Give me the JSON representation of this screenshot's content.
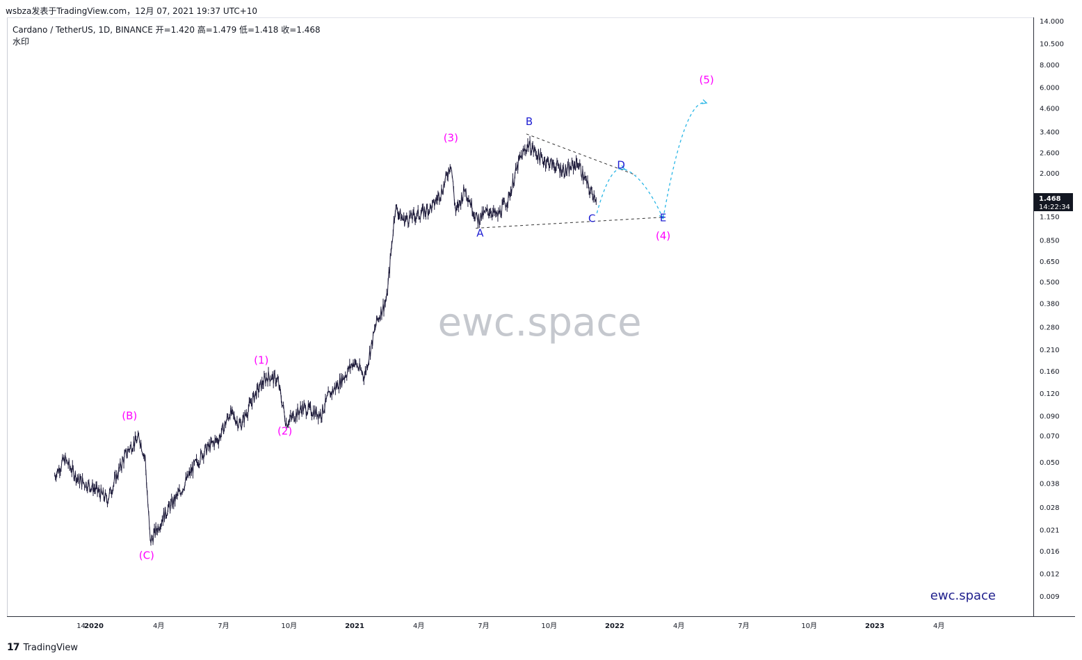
{
  "header": {
    "published_by": "wsbza发表于TradingView.com，12月 07, 2021 19:37 UTC+10"
  },
  "symbol": {
    "line": "Cardano / TetherUS, 1D, BINANCE  开=1.420  高=1.479  低=1.418  收=1.468",
    "watermark_label": "水印"
  },
  "watermark": {
    "center_text": "ewc.space",
    "corner_text": "ewc.space"
  },
  "price_badge": {
    "price": "1.468",
    "countdown": "14:22:34"
  },
  "footer": {
    "logo": "17",
    "brand": "TradingView"
  },
  "colors": {
    "candles": "#1b1838",
    "wave_labels_primary": "#ff00ff",
    "wave_labels_sub": "#1e1ed2",
    "projection": "#29b6e6",
    "triangle_lines": "#333333",
    "price_badge_bg": "#131722"
  },
  "chart_data": {
    "type": "line",
    "title": "Cardano / TetherUS, 1D, BINANCE",
    "yscale": "log",
    "ylim": [
      0.0075,
      15
    ],
    "y_ticks": [
      "14.000",
      "10.500",
      "8.000",
      "6.000",
      "4.600",
      "3.400",
      "2.600",
      "2.000",
      "1.150",
      "0.850",
      "0.650",
      "0.500",
      "0.380",
      "0.280",
      "0.210",
      "0.160",
      "0.120",
      "0.090",
      "0.070",
      "0.050",
      "0.038",
      "0.028",
      "0.021",
      "0.016",
      "0.012",
      "0.009"
    ],
    "x_ticks": [
      "14",
      "2020",
      "4月",
      "7月",
      "10月",
      "2021",
      "4月",
      "7月",
      "10月",
      "2022",
      "4月",
      "7月",
      "10月",
      "2023",
      "4月"
    ],
    "xlim": [
      "2019-11-07",
      "2023-05-25"
    ],
    "series": [
      {
        "x": [
          "2019-11-07",
          "2019-11-21",
          "2019-12-10",
          "2019-12-31",
          "2020-01-20",
          "2020-02-10",
          "2020-02-20",
          "2020-03-05",
          "2020-03-13",
          "2020-03-20",
          "2020-04-10",
          "2020-05-01",
          "2020-05-20",
          "2020-06-05",
          "2020-06-25",
          "2020-07-10",
          "2020-07-25",
          "2020-08-15",
          "2020-09-01",
          "2020-09-15",
          "2020-09-27",
          "2020-10-20",
          "2020-11-15",
          "2020-11-25",
          "2020-12-15",
          "2020-12-31",
          "2021-01-15",
          "2021-02-01",
          "2021-02-15",
          "2021-02-27",
          "2021-03-10",
          "2021-04-01",
          "2021-04-20",
          "2021-05-05",
          "2021-05-16",
          "2021-05-23",
          "2021-06-05",
          "2021-06-22",
          "2021-07-10",
          "2021-07-20",
          "2021-08-05",
          "2021-08-20",
          "2021-09-02",
          "2021-09-20",
          "2021-10-05",
          "2021-10-25",
          "2021-11-10",
          "2021-11-27",
          "2021-12-07"
        ],
        "values": [
          0.042,
          0.052,
          0.04,
          0.036,
          0.031,
          0.05,
          0.06,
          0.068,
          0.052,
          0.018,
          0.026,
          0.034,
          0.047,
          0.058,
          0.068,
          0.094,
          0.08,
          0.12,
          0.15,
          0.142,
          0.082,
          0.1,
          0.092,
          0.115,
          0.145,
          0.18,
          0.15,
          0.3,
          0.4,
          1.3,
          1.1,
          1.18,
          1.3,
          1.65,
          2.3,
          1.2,
          1.65,
          1.1,
          1.25,
          1.15,
          1.45,
          2.35,
          2.9,
          2.4,
          2.25,
          2.05,
          2.3,
          1.6,
          1.468
        ]
      }
    ],
    "annotations": [
      {
        "label": "(B)",
        "x": "2020-02-20",
        "y": 0.086
      },
      {
        "label": "(C)",
        "x": "2020-03-15",
        "y": 0.0145
      },
      {
        "label": "(1)",
        "x": "2020-08-23",
        "y": 0.175
      },
      {
        "label": "(2)",
        "x": "2020-09-25",
        "y": 0.071
      },
      {
        "label": "(3)",
        "x": "2021-05-16",
        "y": 3.0
      },
      {
        "label": "A",
        "x": "2021-06-26",
        "y": 0.89
      },
      {
        "label": "B",
        "x": "2021-09-03",
        "y": 3.7
      },
      {
        "label": "C",
        "x": "2021-11-30",
        "y": 1.07
      },
      {
        "label": "D",
        "x": "2022-01-10",
        "y": 2.12
      },
      {
        "label": "E",
        "x": "2022-03-10",
        "y": 1.08
      },
      {
        "label": "(4)",
        "x": "2022-03-10",
        "y": 0.86
      },
      {
        "label": "(5)",
        "x": "2022-05-10",
        "y": 6.3
      }
    ],
    "projection": {
      "x": [
        "2021-12-07",
        "2022-01-15",
        "2022-03-10",
        "2022-05-10"
      ],
      "values": [
        1.2,
        2.1,
        1.12,
        4.9
      ]
    },
    "triangle_upper": {
      "x": [
        "2021-08-30",
        "2022-01-31"
      ],
      "values": [
        3.3,
        1.95
      ]
    },
    "triangle_lower": {
      "x": [
        "2021-06-20",
        "2022-03-13"
      ],
      "values": [
        0.99,
        1.14
      ]
    }
  }
}
